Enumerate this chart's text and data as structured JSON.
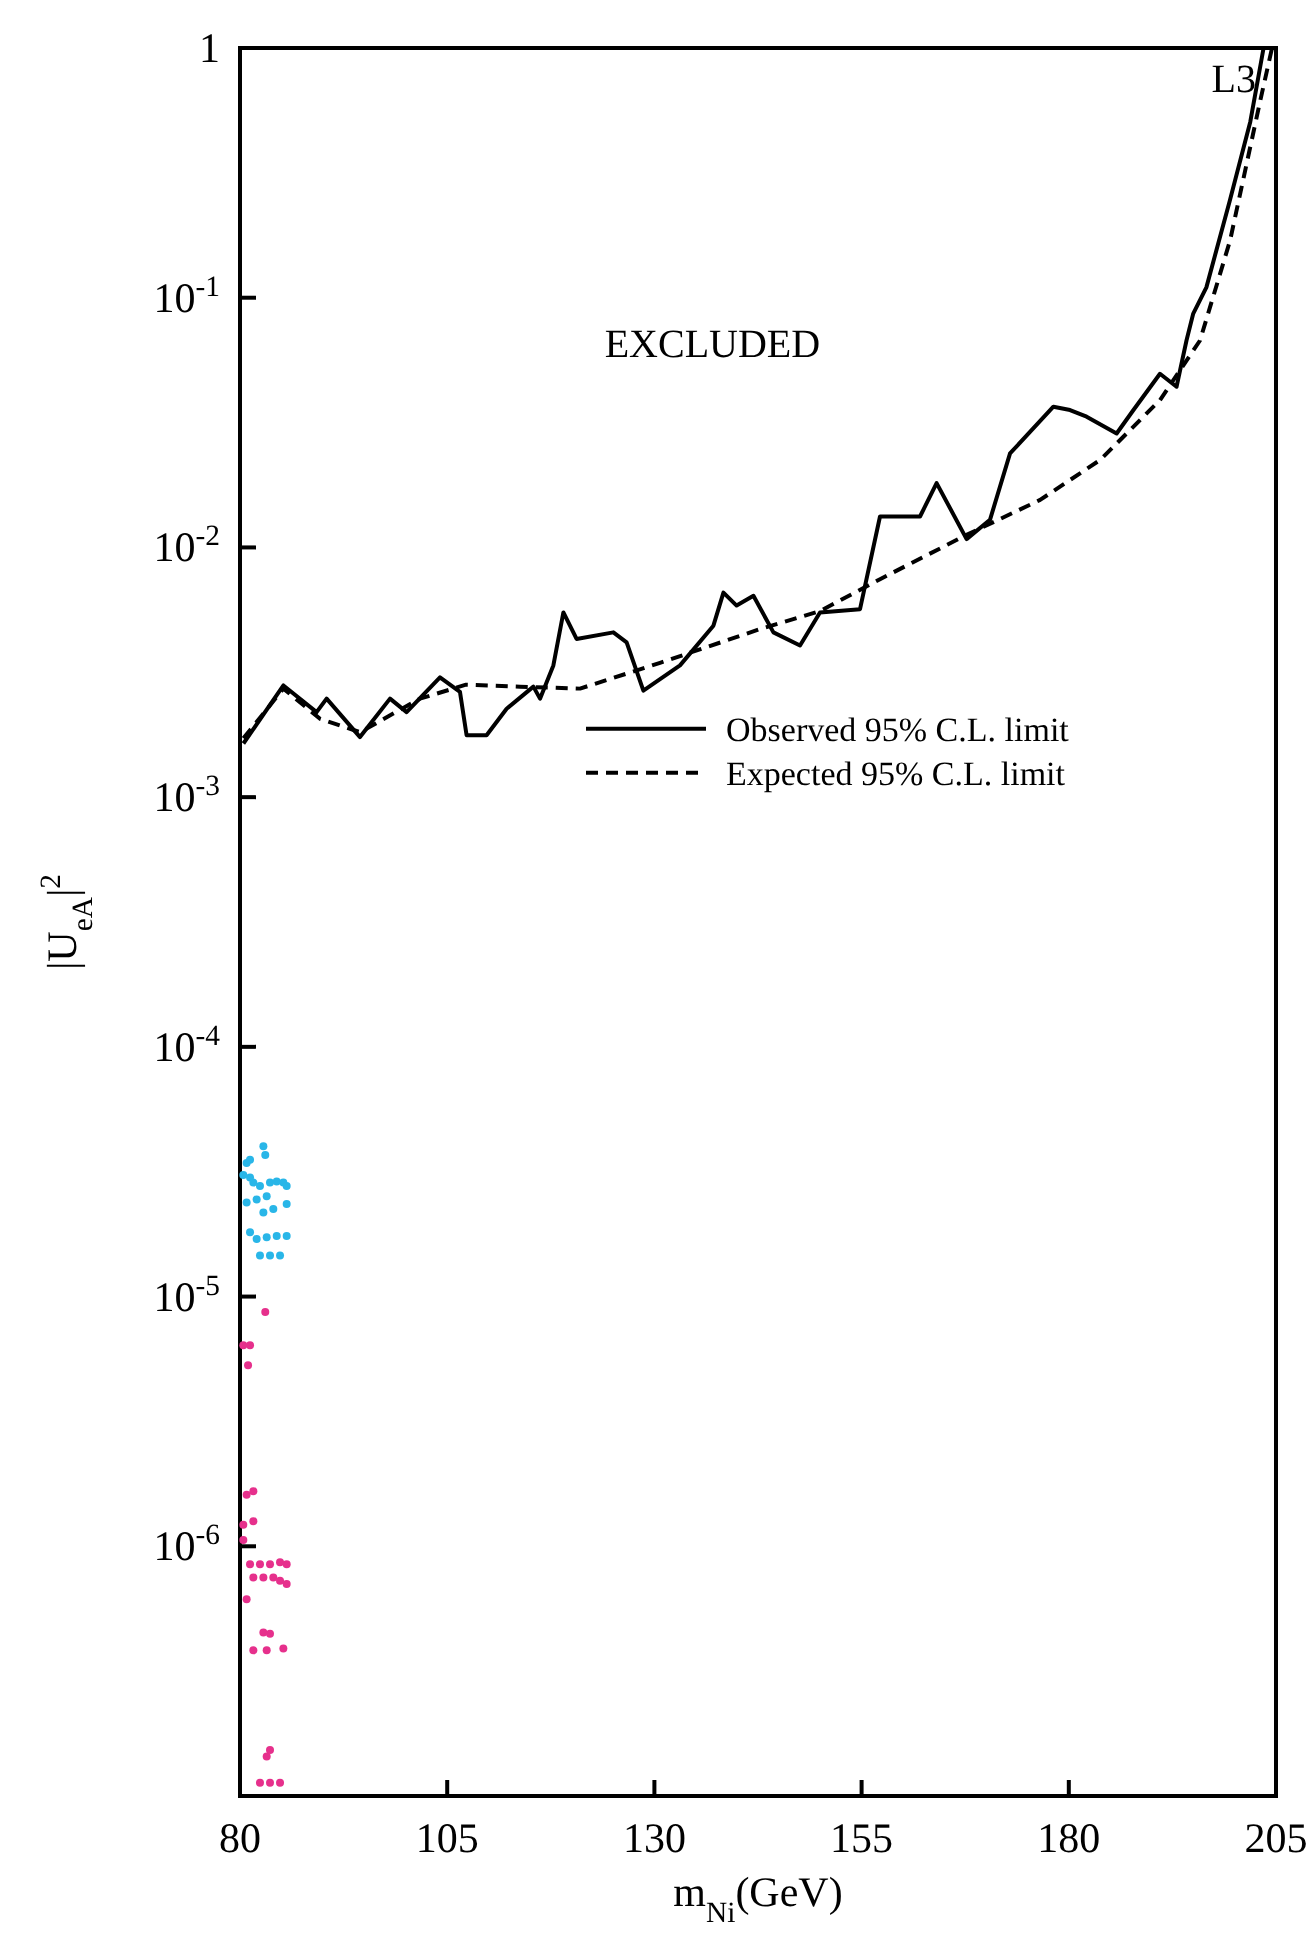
{
  "chart_data": {
    "type": "line",
    "xlabel": "m$_{Ni}$(GeV)",
    "ylabel": "|U$_{eA}$|$^{2}$",
    "annotations": [
      "L3",
      "EXCLUDED"
    ],
    "log": "y",
    "xlim": [
      80,
      205
    ],
    "xticks": [
      80,
      105,
      130,
      155,
      180,
      205
    ],
    "ylim": [
      1e-07,
      1
    ],
    "yticks": [
      {
        "value": 1e-07,
        "label": null
      },
      {
        "value": 1e-06,
        "label": "10$^{-6}$"
      },
      {
        "value": 1e-05,
        "label": "10$^{-5}$"
      },
      {
        "value": 0.0001,
        "label": "10$^{-4}$"
      },
      {
        "value": 0.001,
        "label": "10$^{-3}$"
      },
      {
        "value": 0.01,
        "label": "10$^{-2}$"
      },
      {
        "value": 0.1,
        "label": "10$^{-1}$"
      },
      1
    ],
    "legend": "right",
    "grid": false,
    "series": [
      {
        "name": "Observed 95% C.L. limit",
        "line_style": "solid",
        "color": "#000000",
        "x": [
          80.41,
          85.24,
          89.24,
          90.45,
          94.48,
          98.1,
          100.1,
          104.13,
          106.54,
          107.34,
          109.75,
          112.17,
          115.4,
          116.2,
          117.81,
          119.02,
          120.61,
          125.05,
          126.65,
          128.67,
          133.09,
          137.12,
          138.33,
          139.92,
          141.95,
          144.36,
          147.57,
          149.98,
          154.81,
          157.22,
          162.05,
          164.05,
          167.67,
          170.49,
          172.91,
          178.14,
          180.15,
          182.15,
          185.77,
          187.8,
          191.0,
          193.0,
          194.2,
          195.0,
          196.6,
          199.4,
          201.9,
          203.5
        ],
        "values": [
          0.00164,
          0.0028,
          0.00219,
          0.00248,
          0.00174,
          0.00248,
          0.00219,
          0.00302,
          0.00264,
          0.00177,
          0.00177,
          0.00226,
          0.00277,
          0.00248,
          0.00337,
          0.00549,
          0.0043,
          0.00457,
          0.00417,
          0.00267,
          0.00337,
          0.00486,
          0.00659,
          0.00585,
          0.0064,
          0.00457,
          0.00405,
          0.00549,
          0.00566,
          0.0133,
          0.0133,
          0.0181,
          0.0108,
          0.0129,
          0.0238,
          0.0366,
          0.0355,
          0.0334,
          0.0286,
          0.0355,
          0.0496,
          0.044,
          0.0674,
          0.0861,
          0.11,
          0.243,
          0.507,
          1.0
        ]
      },
      {
        "name": "Expected 95% C.L. limit",
        "line_style": "dashed",
        "color": "#000000",
        "x": [
          80.41,
          85.24,
          89.65,
          94.48,
          101.72,
          107.27,
          113.78,
          121.02,
          130.68,
          142.74,
          149.98,
          157.22,
          167.6,
          176.54,
          183.78,
          191.0,
          195.83,
          199.45,
          203.07,
          204.52
        ],
        "values": [
          0.00172,
          0.00272,
          0.00206,
          0.00182,
          0.00248,
          0.00282,
          0.00277,
          0.00272,
          0.00345,
          0.00471,
          0.00556,
          0.00746,
          0.0112,
          0.0155,
          0.0224,
          0.0389,
          0.0674,
          0.169,
          0.609,
          1.0
        ]
      },
      {
        "type": "scatter",
        "marker": "circle",
        "color": "#29b6e8",
        "x": [
          82.82,
          83.05,
          80.8,
          81.21,
          80.4,
          81.21,
          81.61,
          82.41,
          83.62,
          84.43,
          85.23,
          85.63,
          80.8,
          82.01,
          83.22,
          85.63,
          82.82,
          84.02,
          81.21,
          82.01,
          83.22,
          84.43,
          85.63,
          82.41,
          83.62,
          84.83
        ],
        "values": [
          4e-05,
          3.69e-05,
          3.43e-05,
          3.53e-05,
          3.07e-05,
          3e-05,
          2.86e-05,
          2.77e-05,
          2.86e-05,
          2.89e-05,
          2.86e-05,
          2.77e-05,
          2.38e-05,
          2.45e-05,
          2.52e-05,
          2.35e-05,
          2.17e-05,
          2.24e-05,
          1.81e-05,
          1.7e-05,
          1.73e-05,
          1.75e-05,
          1.75e-05,
          1.46e-05,
          1.46e-05,
          1.46e-05
        ]
      },
      {
        "type": "scatter",
        "marker": "circle",
        "color": "#e6308c",
        "x": [
          83.05,
          80.4,
          81.21,
          80.97,
          80.8,
          81.61,
          80.4,
          81.61,
          80.4,
          81.21,
          82.41,
          83.62,
          84.83,
          85.63,
          81.61,
          82.82,
          84.02,
          84.83,
          85.63,
          80.8,
          82.82,
          83.62,
          81.61,
          83.22,
          85.23,
          83.22,
          83.62,
          82.41,
          83.62,
          84.83
        ],
        "values": [
          8.67e-06,
          6.38e-06,
          6.38e-06,
          5.31e-06,
          1.61e-06,
          1.66e-06,
          1.22e-06,
          1.26e-06,
          1.06e-06,
          8.48e-07,
          8.48e-07,
          8.48e-07,
          8.64e-07,
          8.48e-07,
          7.5e-07,
          7.5e-07,
          7.5e-07,
          7.28e-07,
          7.06e-07,
          6.13e-07,
          4.52e-07,
          4.46e-07,
          3.83e-07,
          3.83e-07,
          3.9e-07,
          1.44e-07,
          1.53e-07,
          1.13e-07,
          1.13e-07,
          1.13e-07
        ]
      }
    ]
  }
}
